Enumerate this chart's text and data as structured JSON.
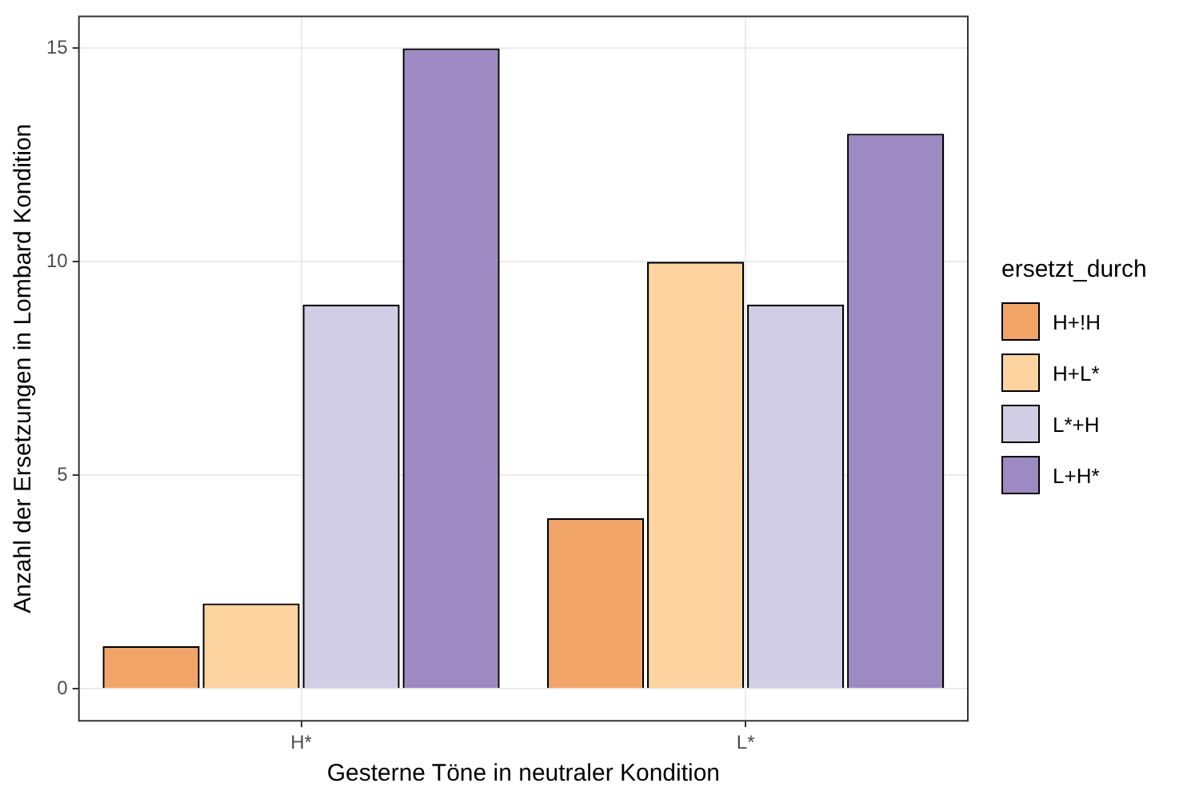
{
  "chart_data": {
    "type": "bar",
    "xlabel": "Gesterne Töne in neutraler Kondition",
    "ylabel": "Anzahl der Ersetzungen in Lombard Kondition",
    "legend_title": "ersetzt_durch",
    "categories": [
      "H*",
      "L*"
    ],
    "series": [
      {
        "name": "H+!H",
        "color": "#f0a468",
        "values": [
          1,
          4
        ]
      },
      {
        "name": "H+L*",
        "color": "#fdd4a0",
        "values": [
          2,
          10
        ]
      },
      {
        "name": "L*+H",
        "color": "#d1cde5",
        "values": [
          9,
          9
        ]
      },
      {
        "name": "L+H*",
        "color": "#9e8ac3",
        "values": [
          15,
          13
        ]
      }
    ],
    "ylim": [
      -0.75,
      15.75
    ],
    "yticks": [
      0,
      5,
      10,
      15
    ],
    "grid": true,
    "legend": "right"
  }
}
